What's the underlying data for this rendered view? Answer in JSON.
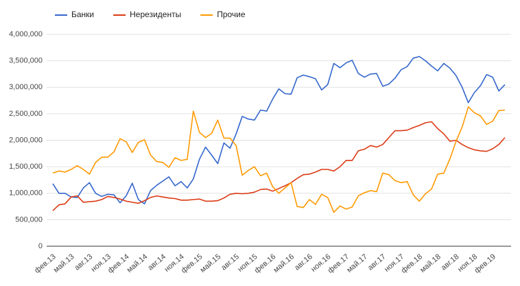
{
  "chart_data": {
    "type": "line",
    "categories": [
      "фев.13",
      null,
      null,
      "май.13",
      null,
      null,
      "авг.13",
      null,
      null,
      "ноя.13",
      null,
      null,
      "фев.14",
      null,
      null,
      "май.14",
      null,
      null,
      "авг.14",
      null,
      null,
      "ноя.14",
      null,
      null,
      "фев.15",
      null,
      null,
      "май.15",
      null,
      null,
      "авг.15",
      null,
      null,
      "ноя.15",
      null,
      null,
      "фев.16",
      null,
      null,
      "май.16",
      null,
      null,
      "авг.16",
      null,
      null,
      "ноя.16",
      null,
      null,
      "фев.17",
      null,
      null,
      "май.17",
      null,
      null,
      "авг.17",
      null,
      null,
      "ноя.17",
      null,
      null,
      "фев.18",
      null,
      null,
      "май.18",
      null,
      null,
      "авг.18",
      null,
      null,
      "ноя.18",
      null,
      null,
      "фев.19",
      null,
      null
    ],
    "series": [
      {
        "name": "Банки",
        "color": "#3366cc",
        "values": [
          1180000,
          1000000,
          1000000,
          930000,
          920000,
          1100000,
          1200000,
          1000000,
          940000,
          980000,
          970000,
          820000,
          950000,
          1190000,
          880000,
          800000,
          1050000,
          1150000,
          1230000,
          1310000,
          1140000,
          1220000,
          1100000,
          1270000,
          1640000,
          1870000,
          1720000,
          1560000,
          1950000,
          1850000,
          2120000,
          2450000,
          2400000,
          2380000,
          2570000,
          2550000,
          2780000,
          2970000,
          2880000,
          2870000,
          3180000,
          3230000,
          3200000,
          3160000,
          2950000,
          3050000,
          3450000,
          3370000,
          3460000,
          3510000,
          3260000,
          3190000,
          3250000,
          3260000,
          3020000,
          3060000,
          3170000,
          3330000,
          3390000,
          3550000,
          3580000,
          3500000,
          3400000,
          3310000,
          3450000,
          3360000,
          3220000,
          3000000,
          2710000,
          2900000,
          3030000,
          3240000,
          3190000,
          2930000,
          3050000
        ]
      },
      {
        "name": "Нерезиденты",
        "color": "#dc3912",
        "values": [
          670000,
          780000,
          800000,
          930000,
          950000,
          830000,
          840000,
          850000,
          880000,
          940000,
          920000,
          890000,
          850000,
          830000,
          810000,
          860000,
          920000,
          950000,
          930000,
          910000,
          900000,
          870000,
          870000,
          880000,
          890000,
          850000,
          850000,
          860000,
          910000,
          980000,
          1000000,
          990000,
          1000000,
          1020000,
          1070000,
          1080000,
          1040000,
          1090000,
          1140000,
          1200000,
          1280000,
          1350000,
          1360000,
          1400000,
          1450000,
          1450000,
          1420000,
          1500000,
          1620000,
          1620000,
          1800000,
          1830000,
          1900000,
          1870000,
          1920000,
          2050000,
          2180000,
          2180000,
          2190000,
          2240000,
          2280000,
          2330000,
          2350000,
          2220000,
          2120000,
          1980000,
          2000000,
          1920000,
          1860000,
          1820000,
          1800000,
          1790000,
          1840000,
          1920000,
          2050000
        ]
      },
      {
        "name": "Прочие",
        "color": "#ff9900",
        "values": [
          1380000,
          1420000,
          1400000,
          1450000,
          1520000,
          1450000,
          1360000,
          1580000,
          1680000,
          1680000,
          1780000,
          2030000,
          1970000,
          1770000,
          1960000,
          2010000,
          1720000,
          1600000,
          1580000,
          1490000,
          1670000,
          1620000,
          1640000,
          2550000,
          2150000,
          2050000,
          2130000,
          2380000,
          2040000,
          2040000,
          1900000,
          1340000,
          1430000,
          1500000,
          1330000,
          1380000,
          1120000,
          1000000,
          1100000,
          1200000,
          750000,
          730000,
          880000,
          790000,
          980000,
          920000,
          640000,
          760000,
          700000,
          740000,
          950000,
          1010000,
          1050000,
          1030000,
          1380000,
          1350000,
          1240000,
          1200000,
          1220000,
          970000,
          850000,
          990000,
          1080000,
          1360000,
          1380000,
          1650000,
          1980000,
          2250000,
          2630000,
          2520000,
          2460000,
          2300000,
          2360000,
          2560000,
          2570000
        ]
      }
    ],
    "ylim": [
      0,
      4000000
    ],
    "yticks": [
      0,
      {
        "value": 500000,
        "label": "500,000"
      },
      {
        "value": 1000000,
        "label": "1,000,000"
      },
      {
        "value": 1500000,
        "label": "1,500,000"
      },
      {
        "value": 2000000,
        "label": "2,000,000"
      },
      {
        "value": 2500000,
        "label": "2,500,000"
      },
      {
        "value": 3000000,
        "label": "3,000,000"
      },
      {
        "value": 3500000,
        "label": "3,500,000"
      },
      {
        "value": 4000000,
        "label": "4,000,000"
      }
    ],
    "grid": true,
    "legend": "top"
  }
}
